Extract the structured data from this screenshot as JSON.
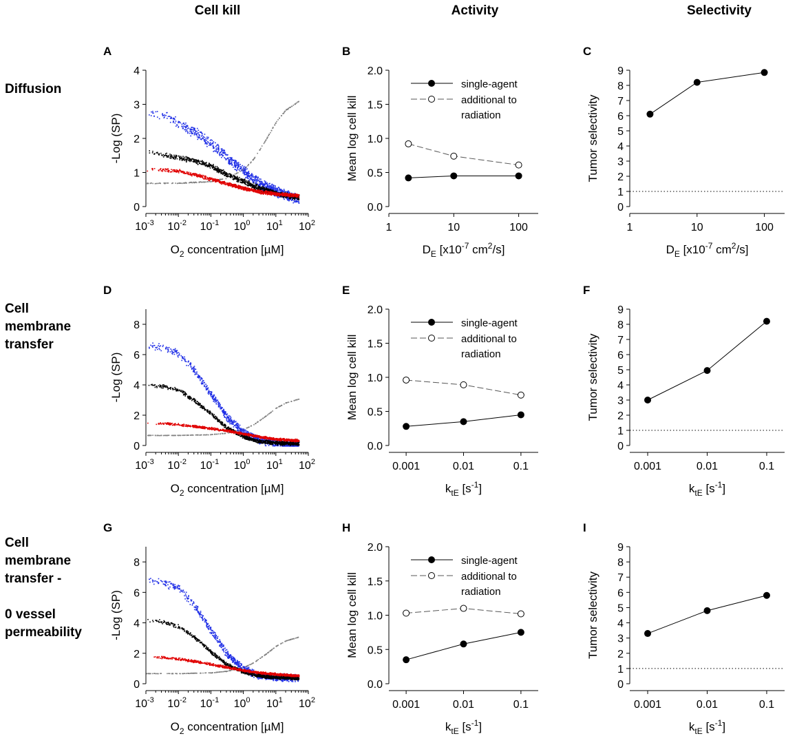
{
  "columns": [
    "Cell kill",
    "Activity",
    "Selectivity"
  ],
  "rows": [
    {
      "lines": [
        "Diffusion"
      ]
    },
    {
      "lines": [
        "Cell",
        "membrane",
        "transfer"
      ]
    },
    {
      "lines": [
        "Cell",
        "membrane",
        "transfer -",
        "",
        "0 vessel",
        "permeability"
      ]
    }
  ],
  "colors": {
    "blue": "#1f2ee6",
    "black": "#000000",
    "red": "#e00000",
    "gray": "#808080"
  },
  "legend": {
    "single": "single-agent",
    "additional": [
      "additional to",
      "radiation"
    ]
  },
  "chart_data": [
    {
      "id": "A",
      "type": "scatter",
      "xscale": "log",
      "xlabel": "O2 concentration [µM]",
      "ylabel": "-Log (SP)",
      "xlim": [
        0.001,
        100
      ],
      "ylim": [
        0,
        4
      ],
      "yticks": [
        0,
        1,
        2,
        3,
        4
      ],
      "xtick_exponents": [
        -3,
        -2,
        -1,
        0,
        1,
        2
      ],
      "series": [
        {
          "name": "blue",
          "x": [
            0.001,
            0.003,
            0.01,
            0.03,
            0.1,
            0.3,
            1,
            3,
            10,
            50
          ],
          "y": [
            2.8,
            2.7,
            2.45,
            2.2,
            1.85,
            1.45,
            1.05,
            0.7,
            0.45,
            0.22
          ]
        },
        {
          "name": "black",
          "x": [
            0.001,
            0.003,
            0.01,
            0.03,
            0.1,
            0.3,
            1,
            3,
            10,
            50
          ],
          "y": [
            1.6,
            1.55,
            1.45,
            1.35,
            1.2,
            0.95,
            0.75,
            0.55,
            0.4,
            0.28
          ]
        },
        {
          "name": "red",
          "x": [
            0.001,
            0.003,
            0.01,
            0.03,
            0.1,
            0.3,
            1,
            3,
            10,
            50
          ],
          "y": [
            1.1,
            1.1,
            1.05,
            0.95,
            0.82,
            0.68,
            0.55,
            0.45,
            0.38,
            0.33
          ]
        },
        {
          "name": "gray",
          "x": [
            0.001,
            0.01,
            0.1,
            0.3,
            1,
            2,
            5,
            10,
            20,
            50
          ],
          "y": [
            0.7,
            0.7,
            0.75,
            0.85,
            1.1,
            1.4,
            2.0,
            2.5,
            2.85,
            3.1
          ]
        }
      ]
    },
    {
      "id": "B",
      "type": "line",
      "xscale": "log",
      "xlabel": "DE [x10-7 cm2/s]",
      "ylabel": "Mean log cell kill",
      "xlim": [
        1,
        200
      ],
      "ylim": [
        0,
        2
      ],
      "yticks": [
        0,
        0.5,
        1,
        1.5,
        2
      ],
      "xticks": [
        1,
        10,
        100
      ],
      "x": [
        2,
        10,
        100
      ],
      "series": [
        {
          "name": "single-agent",
          "values": [
            0.42,
            0.45,
            0.45
          ]
        },
        {
          "name": "additional to radiation",
          "values": [
            0.92,
            0.74,
            0.61
          ]
        }
      ]
    },
    {
      "id": "C",
      "type": "line",
      "xscale": "log",
      "xlabel": "DE [x10-7 cm2/s]",
      "ylabel": "Tumor selectivity",
      "xlim": [
        1,
        200
      ],
      "ylim": [
        0,
        9
      ],
      "yticks": [
        0,
        1,
        2,
        3,
        4,
        5,
        6,
        7,
        8,
        9
      ],
      "xticks": [
        1,
        10,
        100
      ],
      "x": [
        2,
        10,
        100
      ],
      "reference": 1,
      "series": [
        {
          "name": "selectivity",
          "values": [
            6.1,
            8.2,
            8.85
          ]
        }
      ]
    },
    {
      "id": "D",
      "type": "scatter",
      "xscale": "log",
      "xlabel": "O2 concentration [µM]",
      "ylabel": "-Log (SP)",
      "xlim": [
        0.001,
        100
      ],
      "ylim": [
        0,
        9
      ],
      "yticks": [
        0,
        2,
        4,
        6,
        8
      ],
      "xtick_exponents": [
        -3,
        -2,
        -1,
        0,
        1,
        2
      ],
      "series": [
        {
          "name": "blue",
          "x": [
            0.001,
            0.003,
            0.01,
            0.03,
            0.1,
            0.3,
            1,
            3,
            10,
            50
          ],
          "y": [
            6.6,
            6.5,
            6.1,
            5.0,
            3.4,
            1.9,
            0.9,
            0.4,
            0.15,
            0.05
          ]
        },
        {
          "name": "black",
          "x": [
            0.001,
            0.003,
            0.01,
            0.03,
            0.1,
            0.3,
            1,
            3,
            10,
            50
          ],
          "y": [
            4.0,
            3.95,
            3.7,
            3.0,
            2.1,
            1.2,
            0.6,
            0.3,
            0.2,
            0.15
          ]
        },
        {
          "name": "red",
          "x": [
            0.001,
            0.003,
            0.01,
            0.03,
            0.1,
            0.3,
            1,
            3,
            10,
            50
          ],
          "y": [
            1.5,
            1.5,
            1.4,
            1.3,
            1.15,
            1.0,
            0.8,
            0.6,
            0.45,
            0.35
          ]
        },
        {
          "name": "gray",
          "x": [
            0.001,
            0.01,
            0.1,
            0.3,
            1,
            2,
            5,
            10,
            20,
            50
          ],
          "y": [
            0.7,
            0.7,
            0.75,
            0.85,
            1.1,
            1.4,
            2.0,
            2.5,
            2.85,
            3.1
          ]
        }
      ]
    },
    {
      "id": "E",
      "type": "line",
      "xscale": "log",
      "xlabel": "ktE [s-1]",
      "ylabel": "Mean log cell kill",
      "xlim": [
        0.0005,
        0.2
      ],
      "ylim": [
        0,
        2
      ],
      "yticks": [
        0,
        0.5,
        1,
        1.5,
        2
      ],
      "xticks": [
        0.001,
        0.01,
        0.1
      ],
      "x": [
        0.001,
        0.01,
        0.1
      ],
      "series": [
        {
          "name": "single-agent",
          "values": [
            0.28,
            0.35,
            0.45
          ]
        },
        {
          "name": "additional to radiation",
          "values": [
            0.96,
            0.89,
            0.74
          ]
        }
      ]
    },
    {
      "id": "F",
      "type": "line",
      "xscale": "log",
      "xlabel": "ktE [s-1]",
      "ylabel": "Tumor selectivity",
      "xlim": [
        0.0005,
        0.2
      ],
      "ylim": [
        0,
        9
      ],
      "yticks": [
        0,
        1,
        2,
        3,
        4,
        5,
        6,
        7,
        8,
        9
      ],
      "xticks": [
        0.001,
        0.01,
        0.1
      ],
      "x": [
        0.001,
        0.01,
        0.1
      ],
      "reference": 1,
      "series": [
        {
          "name": "selectivity",
          "values": [
            3.0,
            4.95,
            8.2
          ]
        }
      ]
    },
    {
      "id": "G",
      "type": "scatter",
      "xscale": "log",
      "xlabel": "O2 concentration [µM]",
      "ylabel": "-Log (SP)",
      "xlim": [
        0.001,
        100
      ],
      "ylim": [
        0,
        9
      ],
      "yticks": [
        0,
        2,
        4,
        6,
        8
      ],
      "xtick_exponents": [
        -3,
        -2,
        -1,
        0,
        1,
        2
      ],
      "series": [
        {
          "name": "blue",
          "x": [
            0.001,
            0.003,
            0.01,
            0.03,
            0.1,
            0.3,
            1,
            3,
            10,
            50
          ],
          "y": [
            6.8,
            6.7,
            6.3,
            5.2,
            3.5,
            2.0,
            1.0,
            0.55,
            0.45,
            0.4
          ]
        },
        {
          "name": "black",
          "x": [
            0.001,
            0.003,
            0.01,
            0.03,
            0.1,
            0.3,
            1,
            3,
            10,
            50
          ],
          "y": [
            4.2,
            4.1,
            3.8,
            3.1,
            2.1,
            1.3,
            0.8,
            0.55,
            0.45,
            0.4
          ]
        },
        {
          "name": "red",
          "x": [
            0.001,
            0.003,
            0.01,
            0.03,
            0.1,
            0.3,
            1,
            3,
            10,
            50
          ],
          "y": [
            1.8,
            1.75,
            1.65,
            1.5,
            1.3,
            1.1,
            0.9,
            0.75,
            0.65,
            0.55
          ]
        },
        {
          "name": "gray",
          "x": [
            0.001,
            0.01,
            0.1,
            0.3,
            1,
            2,
            5,
            10,
            20,
            50
          ],
          "y": [
            0.7,
            0.7,
            0.75,
            0.85,
            1.1,
            1.4,
            2.0,
            2.5,
            2.85,
            3.1
          ]
        }
      ]
    },
    {
      "id": "H",
      "type": "line",
      "xscale": "log",
      "xlabel": "ktE [s-1]",
      "ylabel": "Mean log cell kill",
      "xlim": [
        0.0005,
        0.2
      ],
      "ylim": [
        0,
        2
      ],
      "yticks": [
        0,
        0.5,
        1,
        1.5,
        2
      ],
      "xticks": [
        0.001,
        0.01,
        0.1
      ],
      "x": [
        0.001,
        0.01,
        0.1
      ],
      "series": [
        {
          "name": "single-agent",
          "values": [
            0.35,
            0.58,
            0.75
          ]
        },
        {
          "name": "additional to radiation",
          "values": [
            1.03,
            1.1,
            1.02
          ]
        }
      ]
    },
    {
      "id": "I",
      "type": "line",
      "xscale": "log",
      "xlabel": "ktE [s-1]",
      "ylabel": "Tumor selectivity",
      "xlim": [
        0.0005,
        0.2
      ],
      "ylim": [
        0,
        9
      ],
      "yticks": [
        0,
        1,
        2,
        3,
        4,
        5,
        6,
        7,
        8,
        9
      ],
      "xticks": [
        0.001,
        0.01,
        0.1
      ],
      "x": [
        0.001,
        0.01,
        0.1
      ],
      "reference": 1,
      "series": [
        {
          "name": "selectivity",
          "values": [
            3.3,
            4.8,
            5.8
          ]
        }
      ]
    }
  ]
}
